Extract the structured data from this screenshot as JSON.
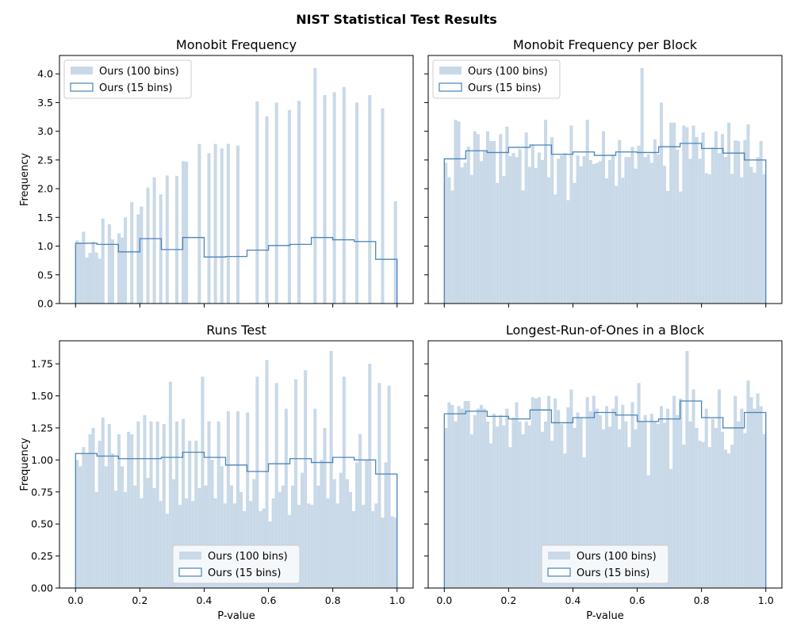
{
  "figure": {
    "title": "NIST Statistical Test Results",
    "colors": {
      "fill100": "#c9d9e8",
      "step15": "#4a84b8",
      "axis": "#000000"
    }
  },
  "chart_data": [
    {
      "type": "bar",
      "title": "Monobit Frequency",
      "xlabel": "",
      "ylabel": "Frequency",
      "xlim": [
        -0.05,
        1.05
      ],
      "ylim": [
        0,
        4.32
      ],
      "x_ticks": [
        "0.0",
        "0.2",
        "0.4",
        "0.6",
        "0.8",
        "1.0"
      ],
      "x_tick_values": [
        0,
        0.2,
        0.4,
        0.6,
        0.8,
        1.0
      ],
      "y_ticks": [
        "0.0",
        "0.5",
        "1.0",
        "1.5",
        "2.0",
        "2.5",
        "3.0",
        "3.5",
        "4.0"
      ],
      "y_tick_values": [
        0,
        0.5,
        1.0,
        1.5,
        2.0,
        2.5,
        3.0,
        3.5,
        4.0
      ],
      "show_x_tick_labels": false,
      "show_y_tick_labels": true,
      "legend": {
        "position": "upper left",
        "labels": [
          "Ours (100 bins)",
          "Ours (15 bins)"
        ]
      },
      "series": [
        {
          "name": "Ours (100 bins)",
          "kind": "hist",
          "bin_edges": [
            0,
            1
          ],
          "values": [
            1.1,
            1.05,
            1.25,
            0.8,
            0.88,
            1.08,
            0.89,
            0.78,
            1.48,
            0,
            1.38,
            1.12,
            0,
            1.22,
            1.15,
            1.5,
            0,
            1.77,
            0,
            1.55,
            1.69,
            0,
            2.02,
            0,
            2.2,
            0,
            1.9,
            0,
            2.23,
            0,
            0,
            2.22,
            0,
            2.48,
            2.47,
            0,
            0,
            0,
            2.78,
            0,
            0,
            2.62,
            0,
            2.78,
            0,
            2.7,
            0,
            2.78,
            0,
            0,
            2.75,
            0,
            0,
            0,
            0,
            0,
            3.52,
            0,
            0,
            3.26,
            0,
            0,
            3.5,
            0,
            0,
            0,
            3.37,
            0,
            0,
            3.53,
            0,
            0,
            0,
            0,
            4.1,
            0,
            0,
            3.63,
            0,
            0,
            3.68,
            0,
            0,
            3.77,
            0,
            0,
            0,
            3.5,
            0,
            0,
            0,
            3.63,
            0,
            0,
            0,
            3.4,
            0,
            0,
            0,
            1.78
          ]
        },
        {
          "name": "Ours (15 bins)",
          "kind": "step",
          "bin_edges": [
            0,
            1
          ],
          "values": [
            1.05,
            1.03,
            0.9,
            1.13,
            0.94,
            1.15,
            0.81,
            0.82,
            0.93,
            1.01,
            1.03,
            1.15,
            1.11,
            1.08,
            0.77
          ]
        }
      ]
    },
    {
      "type": "bar",
      "title": "Monobit Frequency per Block",
      "xlabel": "",
      "ylabel": "",
      "xlim": [
        -0.05,
        1.05
      ],
      "ylim": [
        0,
        4.32
      ],
      "x_ticks": [
        "0.0",
        "0.2",
        "0.4",
        "0.6",
        "0.8",
        "1.0"
      ],
      "x_tick_values": [
        0,
        0.2,
        0.4,
        0.6,
        0.8,
        1.0
      ],
      "y_ticks": [
        "0.0",
        "0.5",
        "1.0",
        "1.5",
        "2.0",
        "2.5",
        "3.0",
        "3.5",
        "4.0"
      ],
      "y_tick_values": [
        0,
        0.5,
        1.0,
        1.5,
        2.0,
        2.5,
        3.0,
        3.5,
        4.0
      ],
      "show_x_tick_labels": false,
      "show_y_tick_labels": false,
      "legend": {
        "position": "upper left",
        "labels": [
          "Ours (100 bins)",
          "Ours (15 bins)"
        ]
      },
      "series": [
        {
          "name": "Ours (100 bins)",
          "kind": "hist",
          "bin_edges": [
            0,
            1
          ],
          "values": [
            2.45,
            2.2,
            1.97,
            3.2,
            3.17,
            2.37,
            2.45,
            2.73,
            2.24,
            3.0,
            2.95,
            2.48,
            2.65,
            3.0,
            2.83,
            2.83,
            2.1,
            2.95,
            2.22,
            3.08,
            2.57,
            2.62,
            2.55,
            2.69,
            1.97,
            2.98,
            2.38,
            2.77,
            2.36,
            2.63,
            2.5,
            3.2,
            2.2,
            2.9,
            1.9,
            2.52,
            2.58,
            2.62,
            1.8,
            3.1,
            2.1,
            2.58,
            2.39,
            2.57,
            3.2,
            2.5,
            2.43,
            2.45,
            2.48,
            3.0,
            2.18,
            2.5,
            2.58,
            2.05,
            2.85,
            2.19,
            2.55,
            2.55,
            2.73,
            2.35,
            2.75,
            4.1,
            2.55,
            2.6,
            2.45,
            2.86,
            2.6,
            3.5,
            2.4,
            1.96,
            3.15,
            3.15,
            2.68,
            1.95,
            3.1,
            3.07,
            2.52,
            3.1,
            2.9,
            2.52,
            2.98,
            2.27,
            2.25,
            2.72,
            3.0,
            2.62,
            2.95,
            2.55,
            3.15,
            2.26,
            2.84,
            2.83,
            2.2,
            2.85,
            3.12,
            2.38,
            2.28,
            2.55,
            2.83,
            2.25
          ]
        },
        {
          "name": "Ours (15 bins)",
          "kind": "step",
          "bin_edges": [
            0,
            1
          ],
          "values": [
            2.52,
            2.66,
            2.63,
            2.72,
            2.76,
            2.6,
            2.64,
            2.58,
            2.64,
            2.63,
            2.73,
            2.79,
            2.7,
            2.62,
            2.5
          ]
        }
      ]
    },
    {
      "type": "bar",
      "title": "Runs Test",
      "xlabel": "P-value",
      "ylabel": "Frequency",
      "xlim": [
        -0.05,
        1.05
      ],
      "ylim": [
        0,
        1.93
      ],
      "x_ticks": [
        "0.0",
        "0.2",
        "0.4",
        "0.6",
        "0.8",
        "1.0"
      ],
      "x_tick_values": [
        0,
        0.2,
        0.4,
        0.6,
        0.8,
        1.0
      ],
      "y_ticks": [
        "0.00",
        "0.25",
        "0.50",
        "0.75",
        "1.00",
        "1.25",
        "1.50",
        "1.75"
      ],
      "y_tick_values": [
        0,
        0.25,
        0.5,
        0.75,
        1.0,
        1.25,
        1.5,
        1.75
      ],
      "show_x_tick_labels": true,
      "show_y_tick_labels": true,
      "legend": {
        "position": "lower center",
        "labels": [
          "Ours (100 bins)",
          "Ours (15 bins)"
        ]
      },
      "series": [
        {
          "name": "Ours (100 bins)",
          "kind": "hist",
          "bin_edges": [
            0,
            1
          ],
          "values": [
            1.0,
            0.95,
            1.1,
            1.05,
            1.2,
            1.25,
            0.75,
            1.15,
            1.33,
            0.95,
            1.28,
            1.05,
            0.76,
            1.2,
            0.95,
            0.75,
            1.22,
            1.2,
            0.8,
            1.3,
            0.7,
            1.35,
            0.86,
            1.3,
            0.78,
            1.3,
            0.68,
            1.28,
            0.58,
            1.61,
            0.85,
            1.3,
            0.65,
            1.32,
            0.7,
            1.15,
            0.68,
            1.15,
            0.78,
            1.65,
            0.8,
            1.3,
            1.0,
            0.7,
            1.3,
            0.95,
            0.66,
            1.38,
            0.8,
            0.66,
            1.38,
            0.75,
            0.6,
            1.37,
            0.68,
            0.85,
            1.65,
            0.6,
            0.62,
            1.78,
            0.52,
            0.7,
            1.6,
            0.75,
            0.8,
            1.4,
            0.57,
            0.8,
            1.63,
            0.65,
            0.9,
            1.7,
            0.66,
            0.65,
            1.4,
            0.8,
            1.0,
            1.25,
            0.7,
            1.85,
            0.85,
            0.66,
            0.9,
            1.65,
            0.85,
            0.75,
            0.6,
            0.98,
            1.2,
            0.65,
            1.0,
            1.75,
            0.6,
            0.66,
            1.6,
            0.55,
            0.98,
            1.58,
            0.56,
            0.55
          ]
        },
        {
          "name": "Ours (15 bins)",
          "kind": "step",
          "bin_edges": [
            0,
            1
          ],
          "values": [
            1.05,
            1.03,
            1.01,
            1.01,
            1.02,
            1.06,
            1.02,
            0.96,
            0.91,
            0.97,
            1.01,
            0.98,
            1.02,
            1.0,
            0.89
          ]
        }
      ]
    },
    {
      "type": "bar",
      "title": "Longest-Run-of-Ones in a Block",
      "xlabel": "P-value",
      "ylabel": "",
      "xlim": [
        -0.05,
        1.05
      ],
      "ylim": [
        0,
        1.93
      ],
      "x_ticks": [
        "0.0",
        "0.2",
        "0.4",
        "0.6",
        "0.8",
        "1.0"
      ],
      "x_tick_values": [
        0,
        0.2,
        0.4,
        0.6,
        0.8,
        1.0
      ],
      "y_ticks": [
        "0.00",
        "0.25",
        "0.50",
        "0.75",
        "1.00",
        "1.25",
        "1.50",
        "1.75"
      ],
      "y_tick_values": [
        0,
        0.25,
        0.5,
        0.75,
        1.0,
        1.25,
        1.5,
        1.75
      ],
      "show_x_tick_labels": true,
      "show_y_tick_labels": false,
      "legend": {
        "position": "lower center",
        "labels": [
          "Ours (100 bins)",
          "Ours (15 bins)"
        ]
      },
      "series": [
        {
          "name": "Ours (100 bins)",
          "kind": "hist",
          "bin_edges": [
            0,
            1
          ],
          "values": [
            1.25,
            1.45,
            1.43,
            1.3,
            1.42,
            1.4,
            1.46,
            1.46,
            1.2,
            1.35,
            1.4,
            1.43,
            1.4,
            1.3,
            1.13,
            1.36,
            1.26,
            1.35,
            1.27,
            1.4,
            1.1,
            1.33,
            1.45,
            1.3,
            1.2,
            1.3,
            1.27,
            1.49,
            1.48,
            1.49,
            1.22,
            1.3,
            1.5,
            1.15,
            1.48,
            1.39,
            1.28,
            1.05,
            1.41,
            1.55,
            1.25,
            1.37,
            1.33,
            1.02,
            1.49,
            1.38,
            1.5,
            1.4,
            1.35,
            1.24,
            1.42,
            1.26,
            1.4,
            1.5,
            1.24,
            1.43,
            1.3,
            1.1,
            1.45,
            1.24,
            1.6,
            1.3,
            1.35,
            0.88,
            1.36,
            1.3,
            1.28,
            1.42,
            1.29,
            1.4,
            0.93,
            1.5,
            1.35,
            1.48,
            1.12,
            1.85,
            1.3,
            1.55,
            1.25,
            1.15,
            1.14,
            1.4,
            1.1,
            1.32,
            1.25,
            1.55,
            1.22,
            1.08,
            1.05,
            1.12,
            1.5,
            1.3,
            1.4,
            1.21,
            1.62,
            1.49,
            1.4,
            1.52,
            1.42,
            1.2
          ]
        },
        {
          "name": "Ours (15 bins)",
          "kind": "step",
          "bin_edges": [
            0,
            1
          ],
          "values": [
            1.36,
            1.38,
            1.34,
            1.32,
            1.39,
            1.29,
            1.33,
            1.37,
            1.35,
            1.3,
            1.32,
            1.46,
            1.33,
            1.25,
            1.37
          ]
        }
      ]
    }
  ]
}
